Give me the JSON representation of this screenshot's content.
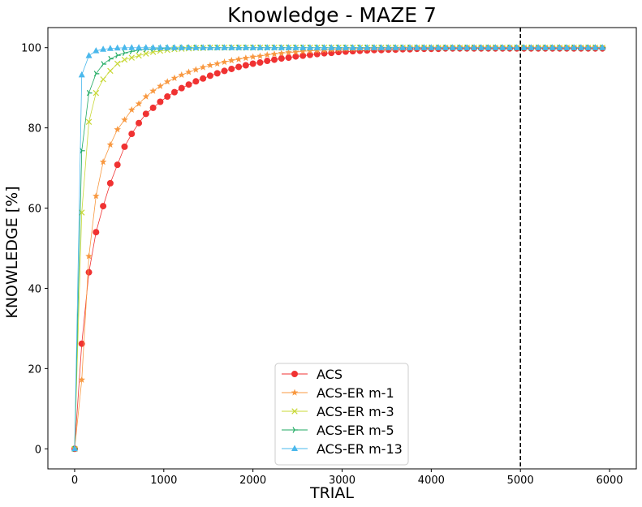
{
  "chart_data": {
    "type": "line",
    "title": "Knowledge - MAZE 7",
    "xlabel": "TRIAL",
    "ylabel": "KNOWLEDGE [%]",
    "xlim": [
      -300,
      6300
    ],
    "ylim": [
      -5,
      105
    ],
    "xticks": [
      0,
      1000,
      2000,
      3000,
      4000,
      5000,
      6000
    ],
    "yticks": [
      0,
      20,
      40,
      60,
      80,
      100
    ],
    "grid": false,
    "legend_position": "bottom-center",
    "vertical_line": {
      "x": 5000,
      "style": "dashed",
      "color": "#000000"
    },
    "sample_step": 80,
    "x_end": 5920,
    "series": [
      {
        "name": "ACS",
        "color": "#f03232",
        "marker": "circle",
        "values": [
          0,
          26.2,
          44.0,
          54.0,
          60.5,
          66.2,
          70.8,
          75.3,
          78.5,
          81.2,
          83.5,
          85.0,
          86.5,
          87.8,
          88.9,
          89.9,
          90.8,
          91.6,
          92.3,
          93.0,
          93.6,
          94.2,
          94.7,
          95.2,
          95.6,
          96.0,
          96.3,
          96.7,
          97.0,
          97.3,
          97.5,
          97.8,
          98.0,
          98.2,
          98.4,
          98.6,
          98.7,
          98.9,
          99.0,
          99.1,
          99.2,
          99.3,
          99.4,
          99.4,
          99.5,
          99.5,
          99.6,
          99.6,
          99.7,
          99.7,
          99.7,
          99.7,
          99.8,
          99.8,
          99.8,
          99.8,
          99.8,
          99.8,
          99.8,
          99.8,
          99.8,
          99.8,
          99.8,
          99.8,
          99.8,
          99.8,
          99.8,
          99.8,
          99.8,
          99.8,
          99.8,
          99.8,
          99.8,
          99.8,
          99.8
        ]
      },
      {
        "name": "ACS-ER m-1",
        "color": "#f89840",
        "marker": "star",
        "values": [
          0,
          17.2,
          48.0,
          63.0,
          71.5,
          75.8,
          79.6,
          82.0,
          84.5,
          86.0,
          87.8,
          89.2,
          90.4,
          91.5,
          92.4,
          93.2,
          93.9,
          94.5,
          95.1,
          95.6,
          96.0,
          96.4,
          96.8,
          97.1,
          97.4,
          97.7,
          97.9,
          98.2,
          98.4,
          98.6,
          98.8,
          98.9,
          99.1,
          99.2,
          99.3,
          99.4,
          99.5,
          99.6,
          99.7,
          99.7,
          99.8,
          99.8,
          99.9,
          99.9,
          99.9,
          99.9,
          100,
          100,
          100,
          100,
          100,
          100,
          100,
          100,
          100,
          100,
          100,
          100,
          100,
          100,
          100,
          100,
          100,
          100,
          100,
          100,
          100,
          100,
          100,
          100,
          100,
          100,
          100,
          100,
          100
        ]
      },
      {
        "name": "ACS-ER m-3",
        "color": "#c8d836",
        "marker": "x",
        "values": [
          0,
          58.9,
          81.5,
          88.7,
          92.1,
          94.2,
          96.0,
          97.0,
          97.5,
          98.0,
          98.5,
          98.9,
          99.2,
          99.4,
          99.6,
          99.7,
          99.8,
          99.9,
          99.9,
          100,
          100,
          100,
          100,
          100,
          100,
          100,
          100,
          100,
          100,
          100,
          100,
          100,
          100,
          100,
          100,
          100,
          100,
          100,
          100,
          100,
          100,
          100,
          100,
          100,
          100,
          100,
          100,
          100,
          100,
          100,
          100,
          100,
          100,
          100,
          100,
          100,
          100,
          100,
          100,
          100,
          100,
          100,
          100,
          100,
          100,
          100,
          100,
          100,
          100,
          100,
          100,
          100,
          100,
          100,
          100
        ]
      },
      {
        "name": "ACS-ER m-5",
        "color": "#1faa62",
        "marker": "tri-right",
        "values": [
          0,
          74.3,
          88.7,
          93.5,
          95.9,
          97.2,
          98.1,
          98.7,
          99.1,
          99.4,
          99.6,
          99.7,
          99.8,
          99.9,
          99.9,
          100,
          100,
          100,
          100,
          100,
          100,
          100,
          100,
          100,
          100,
          100,
          100,
          100,
          100,
          100,
          100,
          100,
          100,
          100,
          100,
          100,
          100,
          100,
          100,
          100,
          100,
          100,
          100,
          100,
          100,
          100,
          100,
          100,
          100,
          100,
          100,
          100,
          100,
          100,
          100,
          100,
          100,
          100,
          100,
          100,
          100,
          100,
          100,
          100,
          100,
          100,
          100,
          100,
          100,
          100,
          100,
          100,
          100,
          100,
          100
        ]
      },
      {
        "name": "ACS-ER m-13",
        "color": "#4ab8ec",
        "marker": "triangle",
        "values": [
          0,
          93.2,
          98.0,
          99.2,
          99.6,
          99.8,
          99.9,
          100,
          100,
          100,
          100,
          100,
          100,
          100,
          100,
          100,
          100,
          100,
          100,
          100,
          100,
          100,
          100,
          100,
          100,
          100,
          100,
          100,
          100,
          100,
          100,
          100,
          100,
          100,
          100,
          100,
          100,
          100,
          100,
          100,
          100,
          100,
          100,
          100,
          100,
          100,
          100,
          100,
          100,
          100,
          100,
          100,
          100,
          100,
          100,
          100,
          100,
          100,
          100,
          100,
          100,
          100,
          100,
          100,
          100,
          100,
          100,
          100,
          100,
          100,
          100,
          100,
          100,
          100,
          100
        ]
      }
    ]
  }
}
